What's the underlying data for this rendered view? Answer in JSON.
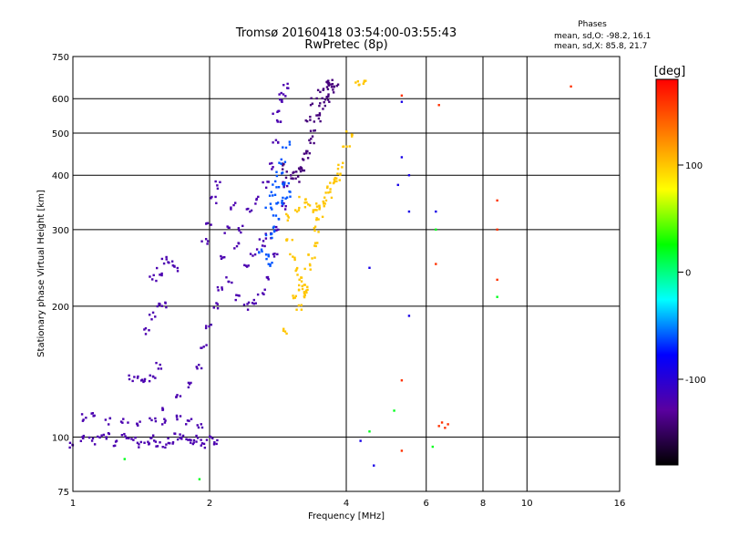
{
  "chart_data": {
    "type": "scatter",
    "title": "Tromsø 20160418 03:54:00-03:55:43",
    "subtitle": "RwPretec (8p)",
    "xlabel": "Frequency [MHz]",
    "ylabel": "Stationary phase Virtual Height [km]",
    "x_scale": "log",
    "y_scale": "log",
    "xlim": [
      1,
      16
    ],
    "ylim": [
      75,
      750
    ],
    "x_ticks": [
      "1",
      "2",
      "4",
      "6",
      "8",
      "10",
      "16"
    ],
    "y_ticks": [
      "75",
      "100",
      "200",
      "300",
      "400",
      "500",
      "600",
      "750"
    ],
    "grid": true,
    "stats": {
      "title": "Phases",
      "line_o": "mean, sd,O: -98.2, 16.1",
      "line_x": "mean, sd,X:  85.8, 21.7"
    },
    "colorbar": {
      "label": "[deg]",
      "range": [
        -180,
        180
      ],
      "ticks": [
        "100",
        "0",
        "-100"
      ],
      "colors": [
        "#ff0000",
        "#ff7f00",
        "#ffff00",
        "#00ff00",
        "#00ffff",
        "#0000ff",
        "#5a00a0",
        "#000000"
      ]
    },
    "series": [
      {
        "phase": -120,
        "note": "purple-blue trace lower",
        "points": [
          [
            1.0,
            96
          ],
          [
            1.05,
            99
          ],
          [
            1.1,
            98
          ],
          [
            1.15,
            100
          ],
          [
            1.2,
            101
          ],
          [
            1.25,
            97
          ],
          [
            1.3,
            100
          ],
          [
            1.35,
            99
          ],
          [
            1.4,
            96
          ],
          [
            1.45,
            98
          ],
          [
            1.5,
            99
          ],
          [
            1.55,
            97
          ],
          [
            1.6,
            96
          ],
          [
            1.65,
            98
          ],
          [
            1.7,
            100
          ],
          [
            1.75,
            99
          ],
          [
            1.8,
            97
          ],
          [
            1.85,
            98
          ],
          [
            1.9,
            99
          ],
          [
            1.95,
            96
          ],
          [
            2.0,
            100
          ],
          [
            2.05,
            98
          ],
          [
            1.05,
            111
          ],
          [
            1.1,
            113
          ],
          [
            1.2,
            109
          ],
          [
            1.3,
            108
          ],
          [
            1.4,
            108
          ],
          [
            1.5,
            109
          ],
          [
            1.6,
            108
          ],
          [
            1.7,
            110
          ],
          [
            1.8,
            108
          ],
          [
            1.9,
            107
          ],
          [
            1.35,
            137
          ],
          [
            1.4,
            136
          ],
          [
            1.45,
            135
          ],
          [
            1.5,
            138
          ],
          [
            1.55,
            146
          ],
          [
            1.45,
            175
          ],
          [
            1.5,
            190
          ],
          [
            1.55,
            200
          ],
          [
            1.6,
            200
          ],
          [
            1.5,
            232
          ],
          [
            1.55,
            240
          ],
          [
            1.6,
            255
          ],
          [
            1.65,
            250
          ],
          [
            1.7,
            245
          ],
          [
            1.6,
            115
          ],
          [
            1.7,
            125
          ],
          [
            1.8,
            132
          ],
          [
            1.9,
            145
          ],
          [
            1.95,
            160
          ],
          [
            2.0,
            180
          ],
          [
            2.05,
            200
          ],
          [
            2.1,
            220
          ],
          [
            2.15,
            260
          ],
          [
            2.2,
            300
          ],
          [
            2.25,
            340
          ],
          [
            2.05,
            350
          ],
          [
            2.1,
            380
          ],
          [
            2.0,
            310
          ],
          [
            1.95,
            280
          ],
          [
            2.2,
            230
          ],
          [
            2.3,
            210
          ],
          [
            2.4,
            200
          ],
          [
            2.5,
            205
          ],
          [
            2.6,
            215
          ],
          [
            2.7,
            230
          ],
          [
            2.8,
            260
          ],
          [
            2.85,
            300
          ],
          [
            2.9,
            340
          ],
          [
            2.95,
            380
          ],
          [
            2.4,
            250
          ],
          [
            2.5,
            265
          ],
          [
            2.6,
            280
          ],
          [
            2.7,
            290
          ],
          [
            2.3,
            275
          ],
          [
            2.35,
            300
          ],
          [
            2.45,
            330
          ],
          [
            2.55,
            350
          ],
          [
            2.65,
            380
          ],
          [
            2.75,
            420
          ],
          [
            2.8,
            480
          ],
          [
            2.85,
            540
          ],
          [
            2.9,
            610
          ],
          [
            2.95,
            640
          ],
          [
            2.85,
            590
          ],
          [
            2.8,
            560
          ]
        ]
      },
      {
        "phase": -140,
        "note": "violet upper X-trace",
        "points": [
          [
            2.9,
            420
          ],
          [
            3.0,
            400
          ],
          [
            3.1,
            390
          ],
          [
            3.2,
            410
          ],
          [
            3.3,
            450
          ],
          [
            3.4,
            500
          ],
          [
            3.5,
            560
          ],
          [
            3.6,
            610
          ],
          [
            3.7,
            640
          ],
          [
            3.75,
            630
          ],
          [
            3.65,
            600
          ],
          [
            3.55,
            580
          ],
          [
            3.45,
            540
          ],
          [
            3.35,
            480
          ],
          [
            3.25,
            440
          ],
          [
            3.15,
            420
          ],
          [
            3.05,
            400
          ],
          [
            3.8,
            650
          ],
          [
            3.7,
            650
          ],
          [
            3.6,
            648
          ],
          [
            3.5,
            630
          ],
          [
            3.4,
            590
          ],
          [
            3.3,
            540
          ]
        ]
      },
      {
        "phase": -60,
        "note": "cyan/light blue",
        "points": [
          [
            2.7,
            340
          ],
          [
            2.75,
            360
          ],
          [
            2.8,
            380
          ],
          [
            2.85,
            400
          ],
          [
            2.9,
            430
          ],
          [
            2.95,
            470
          ],
          [
            2.8,
            320
          ],
          [
            2.75,
            300
          ],
          [
            2.7,
            290
          ],
          [
            2.9,
            350
          ],
          [
            3.0,
            360
          ],
          [
            2.95,
            380
          ],
          [
            2.85,
            340
          ],
          [
            2.6,
            270
          ],
          [
            2.65,
            260
          ],
          [
            2.7,
            250
          ]
        ]
      },
      {
        "phase": 100,
        "note": "yellow O-trace",
        "points": [
          [
            3.0,
            280
          ],
          [
            3.05,
            260
          ],
          [
            3.1,
            240
          ],
          [
            3.15,
            220
          ],
          [
            3.2,
            210
          ],
          [
            3.25,
            225
          ],
          [
            3.3,
            245
          ],
          [
            3.35,
            260
          ],
          [
            3.4,
            280
          ],
          [
            3.45,
            300
          ],
          [
            3.5,
            320
          ],
          [
            3.6,
            345
          ],
          [
            3.7,
            370
          ],
          [
            3.8,
            390
          ],
          [
            3.9,
            420
          ],
          [
            4.0,
            460
          ],
          [
            4.05,
            500
          ],
          [
            3.55,
            340
          ],
          [
            3.65,
            360
          ],
          [
            3.75,
            380
          ],
          [
            3.85,
            400
          ],
          [
            3.3,
            340
          ],
          [
            3.4,
            335
          ],
          [
            3.5,
            338
          ],
          [
            3.2,
            350
          ],
          [
            3.1,
            330
          ],
          [
            3.0,
            320
          ],
          [
            3.2,
            230
          ],
          [
            3.25,
            215
          ],
          [
            3.15,
            200
          ],
          [
            3.1,
            210
          ],
          [
            2.95,
            175
          ],
          [
            4.2,
            650
          ],
          [
            4.4,
            650
          ]
        ]
      },
      {
        "phase": 160,
        "note": "scattered red/orange points",
        "points": [
          [
            5.3,
            610
          ],
          [
            6.4,
            106
          ],
          [
            6.5,
            108
          ],
          [
            6.6,
            105
          ],
          [
            6.7,
            107
          ],
          [
            5.3,
            93
          ],
          [
            5.3,
            135
          ],
          [
            8.6,
            350
          ],
          [
            8.6,
            300
          ],
          [
            8.6,
            230
          ],
          [
            12.5,
            640
          ],
          [
            6.3,
            250
          ],
          [
            6.4,
            580
          ]
        ]
      },
      {
        "phase": 20,
        "note": "scattered green points",
        "points": [
          [
            1.3,
            89
          ],
          [
            1.9,
            80
          ],
          [
            6.2,
            95
          ],
          [
            6.3,
            300
          ],
          [
            8.6,
            210
          ],
          [
            4.5,
            103
          ],
          [
            5.1,
            115
          ]
        ]
      },
      {
        "phase": -90,
        "note": "scattered blue points",
        "points": [
          [
            4.5,
            245
          ],
          [
            5.3,
            590
          ],
          [
            5.5,
            400
          ],
          [
            5.5,
            330
          ],
          [
            4.3,
            98
          ],
          [
            4.6,
            86
          ],
          [
            5.2,
            380
          ],
          [
            6.3,
            330
          ],
          [
            5.5,
            190
          ],
          [
            5.3,
            440
          ]
        ]
      }
    ]
  }
}
